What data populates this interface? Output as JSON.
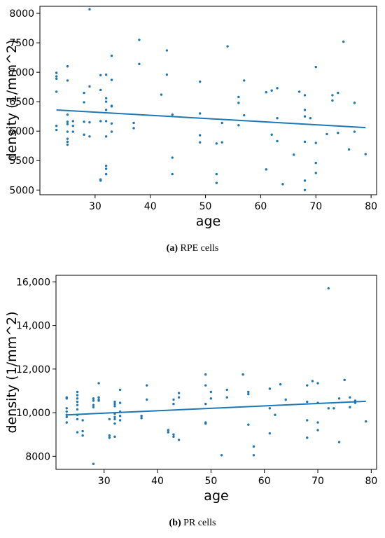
{
  "chart_data": [
    {
      "type": "scatter",
      "panel_letter": "(a)",
      "caption": "RPE cells",
      "xlabel": "age",
      "ylabel": "density (1/mm^2)",
      "xlim": [
        20,
        81
      ],
      "ylim": [
        4920,
        8120
      ],
      "xticks": [
        30,
        40,
        50,
        60,
        70,
        80
      ],
      "xtick_labels": [
        "30",
        "40",
        "50",
        "60",
        "70",
        "80"
      ],
      "yticks": [
        5000,
        5500,
        6000,
        6500,
        7000,
        7500,
        8000
      ],
      "ytick_labels": [
        "5000",
        "5500",
        "6000",
        "6500",
        "7000",
        "7500",
        "8000"
      ],
      "point_color": "#1f77b4",
      "fit_line": {
        "x": [
          23,
          79
        ],
        "y": [
          6360,
          6060
        ]
      },
      "points": [
        [
          23,
          6670
        ],
        [
          23,
          6930
        ],
        [
          23,
          6990
        ],
        [
          23,
          6890
        ],
        [
          23,
          6090
        ],
        [
          23,
          6020
        ],
        [
          25,
          7100
        ],
        [
          25,
          6860
        ],
        [
          25,
          6280
        ],
        [
          25,
          6160
        ],
        [
          25,
          6120
        ],
        [
          25,
          5990
        ],
        [
          25,
          5870
        ],
        [
          25,
          5820
        ],
        [
          25,
          5770
        ],
        [
          26,
          6170
        ],
        [
          26,
          6090
        ],
        [
          26,
          5990
        ],
        [
          28,
          6650
        ],
        [
          28,
          6490
        ],
        [
          28,
          6160
        ],
        [
          28,
          5940
        ],
        [
          29,
          8070
        ],
        [
          29,
          6760
        ],
        [
          29,
          6150
        ],
        [
          29,
          5910
        ],
        [
          31,
          6950
        ],
        [
          31,
          6700
        ],
        [
          31,
          6170
        ],
        [
          31,
          5180
        ],
        [
          31,
          5160
        ],
        [
          32,
          6960
        ],
        [
          32,
          6560
        ],
        [
          32,
          6500
        ],
        [
          32,
          6360
        ],
        [
          32,
          6170
        ],
        [
          32,
          5910
        ],
        [
          32,
          5410
        ],
        [
          32,
          5360
        ],
        [
          32,
          5270
        ],
        [
          33,
          7280
        ],
        [
          33,
          6870
        ],
        [
          33,
          6430
        ],
        [
          33,
          6420
        ],
        [
          33,
          6130
        ],
        [
          33,
          5990
        ],
        [
          37,
          6140
        ],
        [
          37,
          6050
        ],
        [
          38,
          7550
        ],
        [
          38,
          7140
        ],
        [
          42,
          6620
        ],
        [
          43,
          7370
        ],
        [
          43,
          6960
        ],
        [
          44,
          6280
        ],
        [
          44,
          5550
        ],
        [
          44,
          5270
        ],
        [
          49,
          6840
        ],
        [
          49,
          6300
        ],
        [
          49,
          5930
        ],
        [
          49,
          5810
        ],
        [
          52,
          5790
        ],
        [
          52,
          5270
        ],
        [
          52,
          5120
        ],
        [
          53,
          6140
        ],
        [
          53,
          5810
        ],
        [
          54,
          7440
        ],
        [
          56,
          6580
        ],
        [
          56,
          6480
        ],
        [
          56,
          6100
        ],
        [
          57,
          6860
        ],
        [
          57,
          6270
        ],
        [
          61,
          6660
        ],
        [
          61,
          5350
        ],
        [
          62,
          6690
        ],
        [
          62,
          5940
        ],
        [
          63,
          6730
        ],
        [
          63,
          6220
        ],
        [
          63,
          5830
        ],
        [
          64,
          5100
        ],
        [
          66,
          5600
        ],
        [
          67,
          6670
        ],
        [
          68,
          6610
        ],
        [
          68,
          6360
        ],
        [
          68,
          6250
        ],
        [
          68,
          5820
        ],
        [
          68,
          5160
        ],
        [
          68,
          5000
        ],
        [
          69,
          6220
        ],
        [
          70,
          7090
        ],
        [
          70,
          5800
        ],
        [
          70,
          5460
        ],
        [
          70,
          5290
        ],
        [
          72,
          5950
        ],
        [
          73,
          6610
        ],
        [
          73,
          6520
        ],
        [
          74,
          6650
        ],
        [
          74,
          5970
        ],
        [
          75,
          7520
        ],
        [
          76,
          5690
        ],
        [
          77,
          6480
        ],
        [
          77,
          5990
        ],
        [
          79,
          5610
        ]
      ]
    },
    {
      "type": "scatter",
      "panel_letter": "(b)",
      "caption": "PR cells",
      "xlabel": "age",
      "ylabel": "density (1/mm^2)",
      "xlim": [
        21,
        81
      ],
      "ylim": [
        7400,
        16300
      ],
      "xticks": [
        30,
        40,
        50,
        60,
        70,
        80
      ],
      "xtick_labels": [
        "30",
        "40",
        "50",
        "60",
        "70",
        "80"
      ],
      "yticks": [
        8000,
        10000,
        12000,
        14000,
        16000
      ],
      "ytick_labels": [
        "8000",
        "10,000",
        "12,000",
        "14,000",
        "16,000"
      ],
      "point_color": "#1f77b4",
      "fit_line": {
        "x": [
          23,
          79
        ],
        "y": [
          9900,
          10520
        ]
      },
      "points": [
        [
          23,
          10700
        ],
        [
          23,
          10650
        ],
        [
          23,
          10200
        ],
        [
          23,
          10050
        ],
        [
          23,
          9900
        ],
        [
          23,
          9800
        ],
        [
          23,
          9550
        ],
        [
          25,
          10950
        ],
        [
          25,
          10800
        ],
        [
          25,
          10650
        ],
        [
          25,
          10500
        ],
        [
          25,
          10350
        ],
        [
          25,
          10150
        ],
        [
          25,
          9900
        ],
        [
          25,
          9700
        ],
        [
          25,
          9100
        ],
        [
          26,
          9650
        ],
        [
          26,
          9150
        ],
        [
          26,
          8950
        ],
        [
          28,
          10650
        ],
        [
          28,
          10550
        ],
        [
          28,
          10350
        ],
        [
          28,
          10250
        ],
        [
          28,
          7650
        ],
        [
          29,
          10700
        ],
        [
          29,
          10600
        ],
        [
          29,
          10550
        ],
        [
          29,
          11350
        ],
        [
          31,
          9700
        ],
        [
          31,
          8950
        ],
        [
          31,
          8850
        ],
        [
          32,
          10500
        ],
        [
          32,
          10400
        ],
        [
          32,
          10300
        ],
        [
          32,
          9950
        ],
        [
          32,
          9800
        ],
        [
          32,
          9700
        ],
        [
          32,
          9500
        ],
        [
          32,
          8900
        ],
        [
          33,
          11050
        ],
        [
          33,
          10450
        ],
        [
          33,
          10050
        ],
        [
          33,
          9850
        ],
        [
          33,
          9650
        ],
        [
          37,
          9850
        ],
        [
          37,
          9750
        ],
        [
          38,
          11250
        ],
        [
          38,
          10600
        ],
        [
          42,
          9200
        ],
        [
          42,
          9100
        ],
        [
          43,
          10600
        ],
        [
          43,
          10400
        ],
        [
          43,
          9000
        ],
        [
          43,
          8900
        ],
        [
          44,
          10900
        ],
        [
          44,
          10700
        ],
        [
          44,
          8750
        ],
        [
          49,
          11750
        ],
        [
          49,
          11250
        ],
        [
          49,
          10400
        ],
        [
          49,
          9550
        ],
        [
          49,
          9500
        ],
        [
          50,
          10950
        ],
        [
          50,
          10650
        ],
        [
          52,
          8050
        ],
        [
          53,
          11050
        ],
        [
          53,
          10700
        ],
        [
          56,
          11750
        ],
        [
          57,
          10950
        ],
        [
          57,
          10850
        ],
        [
          57,
          9450
        ],
        [
          58,
          8450
        ],
        [
          58,
          8050
        ],
        [
          61,
          11100
        ],
        [
          61,
          10200
        ],
        [
          61,
          9050
        ],
        [
          62,
          9900
        ],
        [
          63,
          11300
        ],
        [
          64,
          10600
        ],
        [
          68,
          11250
        ],
        [
          68,
          10500
        ],
        [
          68,
          9650
        ],
        [
          68,
          8850
        ],
        [
          69,
          11450
        ],
        [
          70,
          11350
        ],
        [
          70,
          10450
        ],
        [
          70,
          9550
        ],
        [
          70,
          9200
        ],
        [
          72,
          15700
        ],
        [
          72,
          10200
        ],
        [
          73,
          10200
        ],
        [
          74,
          10650
        ],
        [
          74,
          8650
        ],
        [
          75,
          11500
        ],
        [
          76,
          10700
        ],
        [
          76,
          10250
        ],
        [
          77,
          10550
        ],
        [
          77,
          10450
        ],
        [
          79,
          9600
        ]
      ]
    }
  ]
}
